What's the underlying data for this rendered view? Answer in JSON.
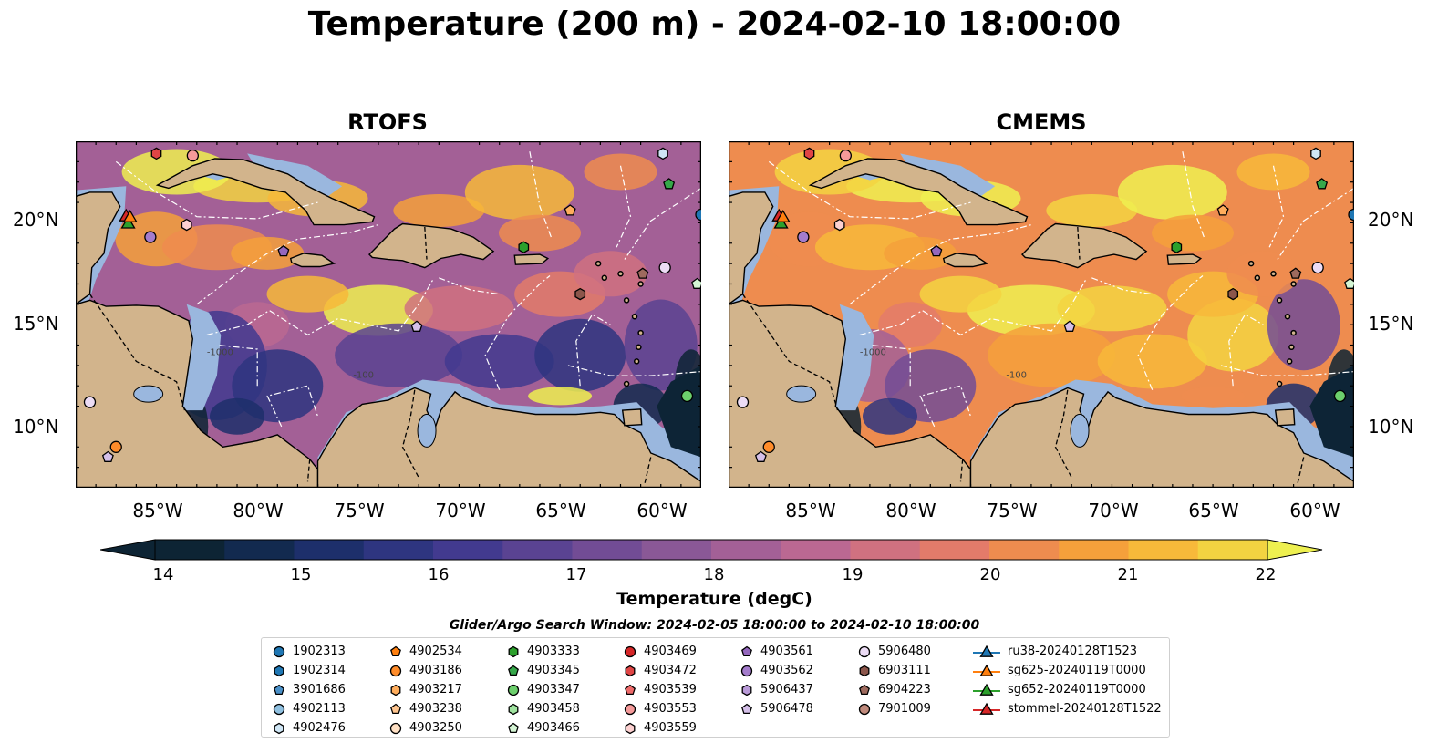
{
  "title": "Temperature (200 m) - 2024-02-10 18:00:00",
  "panels": [
    {
      "name": "RTOFS"
    },
    {
      "name": "CMEMS"
    }
  ],
  "map": {
    "lat_ticks": [
      "20°N",
      "15°N",
      "10°N"
    ],
    "lon_ticks": [
      "85°W",
      "80°W",
      "75°W",
      "70°W",
      "65°W",
      "60°W"
    ],
    "extent": {
      "lon": [
        -89,
        -58
      ],
      "lat": [
        7,
        24
      ]
    },
    "colors": {
      "land": "#d2b48c",
      "shallow_water": "#9ab7de",
      "deep_cold": "#0d2436"
    },
    "isobath_labels": [
      "-100",
      "-1000"
    ]
  },
  "colorbar": {
    "ticks": [
      "14",
      "15",
      "16",
      "17",
      "18",
      "19",
      "20",
      "21",
      "22"
    ],
    "label": "Temperature (degC)",
    "colors": [
      "#0d2434",
      "#122a4f",
      "#1d2f6b",
      "#2e3580",
      "#423a8f",
      "#5a4392",
      "#724c95",
      "#8a5896",
      "#a36096",
      "#bb6892",
      "#d07180",
      "#e37b6a",
      "#ee8c4f",
      "#f5a03b",
      "#f7b93a",
      "#f3d341",
      "#eef050"
    ]
  },
  "search_window": "Glider/Argo Search Window: 2024-02-05 18:00:00 to 2024-02-10 18:00:00",
  "legend": {
    "columns": [
      [
        {
          "label": "1902313",
          "marker": "circle",
          "color": "#1f77b4"
        },
        {
          "label": "1902314",
          "marker": "hexagon",
          "color": "#1f77b4"
        },
        {
          "label": "3901686",
          "marker": "pentagon",
          "color": "#4a90c8"
        },
        {
          "label": "4902113",
          "marker": "circle",
          "color": "#8fc0e0"
        },
        {
          "label": "4902476",
          "marker": "hexagon",
          "color": "#cfe6f5"
        }
      ],
      [
        {
          "label": "4902534",
          "marker": "pentagon",
          "color": "#ff7f0e"
        },
        {
          "label": "4903186",
          "marker": "circle",
          "color": "#ff8c2a"
        },
        {
          "label": "4903217",
          "marker": "hexagon",
          "color": "#ffad5c"
        },
        {
          "label": "4903238",
          "marker": "pentagon",
          "color": "#ffc58f"
        },
        {
          "label": "4903250",
          "marker": "circle",
          "color": "#ffe0c4"
        }
      ],
      [
        {
          "label": "4903333",
          "marker": "hexagon",
          "color": "#2ca02c"
        },
        {
          "label": "4903345",
          "marker": "pentagon",
          "color": "#36a84a"
        },
        {
          "label": "4903347",
          "marker": "circle",
          "color": "#6ccf6c"
        },
        {
          "label": "4903458",
          "marker": "hexagon",
          "color": "#9fe39f"
        },
        {
          "label": "4903466",
          "marker": "pentagon",
          "color": "#d4f5d4"
        }
      ],
      [
        {
          "label": "4903469",
          "marker": "circle",
          "color": "#d62728"
        },
        {
          "label": "4903472",
          "marker": "hexagon",
          "color": "#e04545"
        },
        {
          "label": "4903539",
          "marker": "pentagon",
          "color": "#ee6a6a"
        },
        {
          "label": "4903553",
          "marker": "circle",
          "color": "#f59a9a"
        },
        {
          "label": "4903559",
          "marker": "hexagon",
          "color": "#fcd0d0"
        }
      ],
      [
        {
          "label": "4903561",
          "marker": "pentagon",
          "color": "#9467bd"
        },
        {
          "label": "4903562",
          "marker": "circle",
          "color": "#a47ccc"
        },
        {
          "label": "5906437",
          "marker": "hexagon",
          "color": "#b99ad8"
        },
        {
          "label": "5906478",
          "marker": "pentagon",
          "color": "#d4bfe8"
        }
      ],
      [
        {
          "label": "5906480",
          "marker": "circle",
          "color": "#ecdcf5"
        },
        {
          "label": "6903111",
          "marker": "hexagon",
          "color": "#8c564b"
        },
        {
          "label": "6904223",
          "marker": "pentagon",
          "color": "#9e6a5e"
        },
        {
          "label": "7901009",
          "marker": "circle",
          "color": "#c08a7c"
        }
      ],
      [
        {
          "label": "ru38-20240128T1523",
          "marker": "triangle",
          "color": "#1f77b4"
        },
        {
          "label": "sg625-20240119T0000",
          "marker": "triangle",
          "color": "#ff7f0e"
        },
        {
          "label": "sg652-20240119T0000",
          "marker": "triangle",
          "color": "#2ca02c"
        },
        {
          "label": "stommel-20240128T1522",
          "marker": "triangle",
          "color": "#d62728"
        }
      ]
    ]
  }
}
